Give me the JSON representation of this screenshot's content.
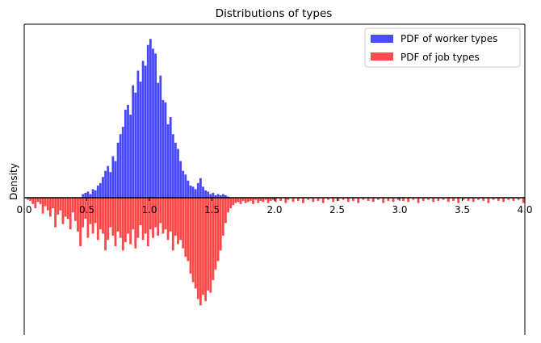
{
  "chart_data": {
    "type": "bar",
    "title": "Distributions of types",
    "xlabel": "",
    "ylabel": "Density",
    "xlim": [
      0.0,
      4.0
    ],
    "x_ticks": [
      "0.0",
      "0.5",
      "1.0",
      "1.5",
      "2.0",
      "2.5",
      "3.0",
      "3.5",
      "4.0"
    ],
    "ylim": [
      -1.3,
      1.42
    ],
    "grid": false,
    "legend_position": "top-right",
    "bin_width": 0.02,
    "series": [
      {
        "name": "PDF of worker types",
        "color": "#0000ff",
        "direction": "up",
        "bins": [
          [
            0.46,
            0.03
          ],
          [
            0.48,
            0.04
          ],
          [
            0.5,
            0.05
          ],
          [
            0.52,
            0.03
          ],
          [
            0.54,
            0.07
          ],
          [
            0.56,
            0.06
          ],
          [
            0.58,
            0.1
          ],
          [
            0.6,
            0.12
          ],
          [
            0.62,
            0.17
          ],
          [
            0.64,
            0.22
          ],
          [
            0.66,
            0.26
          ],
          [
            0.68,
            0.21
          ],
          [
            0.7,
            0.34
          ],
          [
            0.72,
            0.3
          ],
          [
            0.74,
            0.45
          ],
          [
            0.76,
            0.52
          ],
          [
            0.78,
            0.58
          ],
          [
            0.8,
            0.72
          ],
          [
            0.82,
            0.76
          ],
          [
            0.84,
            0.68
          ],
          [
            0.86,
            0.92
          ],
          [
            0.88,
            0.86
          ],
          [
            0.9,
            1.04
          ],
          [
            0.92,
            0.95
          ],
          [
            0.94,
            1.12
          ],
          [
            0.96,
            1.08
          ],
          [
            0.98,
            1.25
          ],
          [
            1.0,
            1.3
          ],
          [
            1.02,
            1.22
          ],
          [
            1.04,
            1.18
          ],
          [
            1.06,
            0.94
          ],
          [
            1.08,
            1.0
          ],
          [
            1.1,
            0.8
          ],
          [
            1.12,
            0.78
          ],
          [
            1.14,
            0.6
          ],
          [
            1.16,
            0.66
          ],
          [
            1.18,
            0.52
          ],
          [
            1.2,
            0.45
          ],
          [
            1.22,
            0.4
          ],
          [
            1.24,
            0.3
          ],
          [
            1.26,
            0.22
          ],
          [
            1.28,
            0.19
          ],
          [
            1.3,
            0.14
          ],
          [
            1.32,
            0.1
          ],
          [
            1.34,
            0.09
          ],
          [
            1.36,
            0.07
          ],
          [
            1.38,
            0.12
          ],
          [
            1.4,
            0.16
          ],
          [
            1.42,
            0.09
          ],
          [
            1.44,
            0.06
          ],
          [
            1.46,
            0.05
          ],
          [
            1.48,
            0.03
          ],
          [
            1.5,
            0.04
          ],
          [
            1.52,
            0.02
          ],
          [
            1.54,
            0.03
          ],
          [
            1.56,
            0.02
          ],
          [
            1.58,
            0.03
          ],
          [
            1.6,
            0.02
          ],
          [
            1.62,
            0.01
          ]
        ]
      },
      {
        "name": "PDF of job types",
        "color": "#ff0000",
        "direction": "down",
        "bins": [
          [
            0.02,
            0.02
          ],
          [
            0.04,
            0.03
          ],
          [
            0.06,
            0.06
          ],
          [
            0.08,
            0.1
          ],
          [
            0.1,
            0.04
          ],
          [
            0.12,
            0.06
          ],
          [
            0.14,
            0.15
          ],
          [
            0.16,
            0.08
          ],
          [
            0.18,
            0.12
          ],
          [
            0.2,
            0.18
          ],
          [
            0.22,
            0.1
          ],
          [
            0.24,
            0.28
          ],
          [
            0.26,
            0.16
          ],
          [
            0.28,
            0.12
          ],
          [
            0.3,
            0.25
          ],
          [
            0.32,
            0.18
          ],
          [
            0.34,
            0.2
          ],
          [
            0.36,
            0.3
          ],
          [
            0.38,
            0.14
          ],
          [
            0.4,
            0.22
          ],
          [
            0.42,
            0.32
          ],
          [
            0.44,
            0.46
          ],
          [
            0.46,
            0.28
          ],
          [
            0.48,
            0.2
          ],
          [
            0.5,
            0.38
          ],
          [
            0.52,
            0.25
          ],
          [
            0.54,
            0.34
          ],
          [
            0.56,
            0.24
          ],
          [
            0.58,
            0.4
          ],
          [
            0.6,
            0.3
          ],
          [
            0.62,
            0.34
          ],
          [
            0.64,
            0.5
          ],
          [
            0.66,
            0.4
          ],
          [
            0.68,
            0.28
          ],
          [
            0.7,
            0.36
          ],
          [
            0.72,
            0.46
          ],
          [
            0.74,
            0.32
          ],
          [
            0.76,
            0.38
          ],
          [
            0.78,
            0.5
          ],
          [
            0.8,
            0.42
          ],
          [
            0.82,
            0.34
          ],
          [
            0.84,
            0.44
          ],
          [
            0.86,
            0.3
          ],
          [
            0.88,
            0.48
          ],
          [
            0.9,
            0.38
          ],
          [
            0.92,
            0.26
          ],
          [
            0.94,
            0.4
          ],
          [
            0.96,
            0.34
          ],
          [
            0.98,
            0.46
          ],
          [
            1.0,
            0.3
          ],
          [
            1.02,
            0.38
          ],
          [
            1.04,
            0.28
          ],
          [
            1.06,
            0.36
          ],
          [
            1.08,
            0.24
          ],
          [
            1.1,
            0.34
          ],
          [
            1.12,
            0.3
          ],
          [
            1.14,
            0.4
          ],
          [
            1.16,
            0.32
          ],
          [
            1.18,
            0.5
          ],
          [
            1.2,
            0.36
          ],
          [
            1.22,
            0.44
          ],
          [
            1.24,
            0.4
          ],
          [
            1.26,
            0.48
          ],
          [
            1.28,
            0.56
          ],
          [
            1.3,
            0.6
          ],
          [
            1.32,
            0.72
          ],
          [
            1.34,
            0.8
          ],
          [
            1.36,
            0.86
          ],
          [
            1.38,
            0.96
          ],
          [
            1.4,
            1.02
          ],
          [
            1.42,
            0.92
          ],
          [
            1.44,
            0.98
          ],
          [
            1.46,
            0.88
          ],
          [
            1.48,
            0.9
          ],
          [
            1.5,
            0.78
          ],
          [
            1.52,
            0.68
          ],
          [
            1.54,
            0.6
          ],
          [
            1.56,
            0.5
          ],
          [
            1.58,
            0.36
          ],
          [
            1.6,
            0.24
          ],
          [
            1.62,
            0.14
          ],
          [
            1.64,
            0.1
          ],
          [
            1.66,
            0.07
          ],
          [
            1.68,
            0.05
          ],
          [
            1.7,
            0.04
          ],
          [
            1.72,
            0.06
          ],
          [
            1.74,
            0.03
          ],
          [
            1.76,
            0.05
          ],
          [
            1.78,
            0.04
          ],
          [
            1.8,
            0.03
          ],
          [
            1.82,
            0.06
          ],
          [
            1.84,
            0.02
          ],
          [
            1.86,
            0.05
          ],
          [
            1.88,
            0.03
          ],
          [
            1.9,
            0.04
          ],
          [
            1.92,
            0.02
          ],
          [
            1.94,
            0.05
          ],
          [
            1.96,
            0.03
          ],
          [
            1.98,
            0.02
          ],
          [
            2.0,
            0.04
          ],
          [
            2.04,
            0.03
          ],
          [
            2.08,
            0.05
          ],
          [
            2.1,
            0.02
          ],
          [
            2.14,
            0.04
          ],
          [
            2.18,
            0.03
          ],
          [
            2.22,
            0.05
          ],
          [
            2.26,
            0.02
          ],
          [
            2.3,
            0.04
          ],
          [
            2.34,
            0.03
          ],
          [
            2.38,
            0.05
          ],
          [
            2.42,
            0.02
          ],
          [
            2.46,
            0.04
          ],
          [
            2.5,
            0.03
          ],
          [
            2.54,
            0.02
          ],
          [
            2.58,
            0.04
          ],
          [
            2.62,
            0.03
          ],
          [
            2.66,
            0.05
          ],
          [
            2.7,
            0.02
          ],
          [
            2.74,
            0.03
          ],
          [
            2.78,
            0.04
          ],
          [
            2.82,
            0.02
          ],
          [
            2.86,
            0.05
          ],
          [
            2.9,
            0.03
          ],
          [
            2.94,
            0.04
          ],
          [
            2.98,
            0.02
          ],
          [
            3.02,
            0.03
          ],
          [
            3.06,
            0.04
          ],
          [
            3.1,
            0.02
          ],
          [
            3.14,
            0.05
          ],
          [
            3.18,
            0.03
          ],
          [
            3.22,
            0.02
          ],
          [
            3.26,
            0.04
          ],
          [
            3.3,
            0.03
          ],
          [
            3.34,
            0.02
          ],
          [
            3.38,
            0.04
          ],
          [
            3.42,
            0.03
          ],
          [
            3.46,
            0.05
          ],
          [
            3.5,
            0.02
          ],
          [
            3.54,
            0.03
          ],
          [
            3.58,
            0.04
          ],
          [
            3.62,
            0.02
          ],
          [
            3.66,
            0.03
          ],
          [
            3.7,
            0.05
          ],
          [
            3.74,
            0.02
          ],
          [
            3.78,
            0.03
          ],
          [
            3.82,
            0.04
          ],
          [
            3.86,
            0.02
          ],
          [
            3.9,
            0.03
          ],
          [
            3.94,
            0.02
          ],
          [
            3.98,
            0.05
          ]
        ]
      }
    ]
  }
}
